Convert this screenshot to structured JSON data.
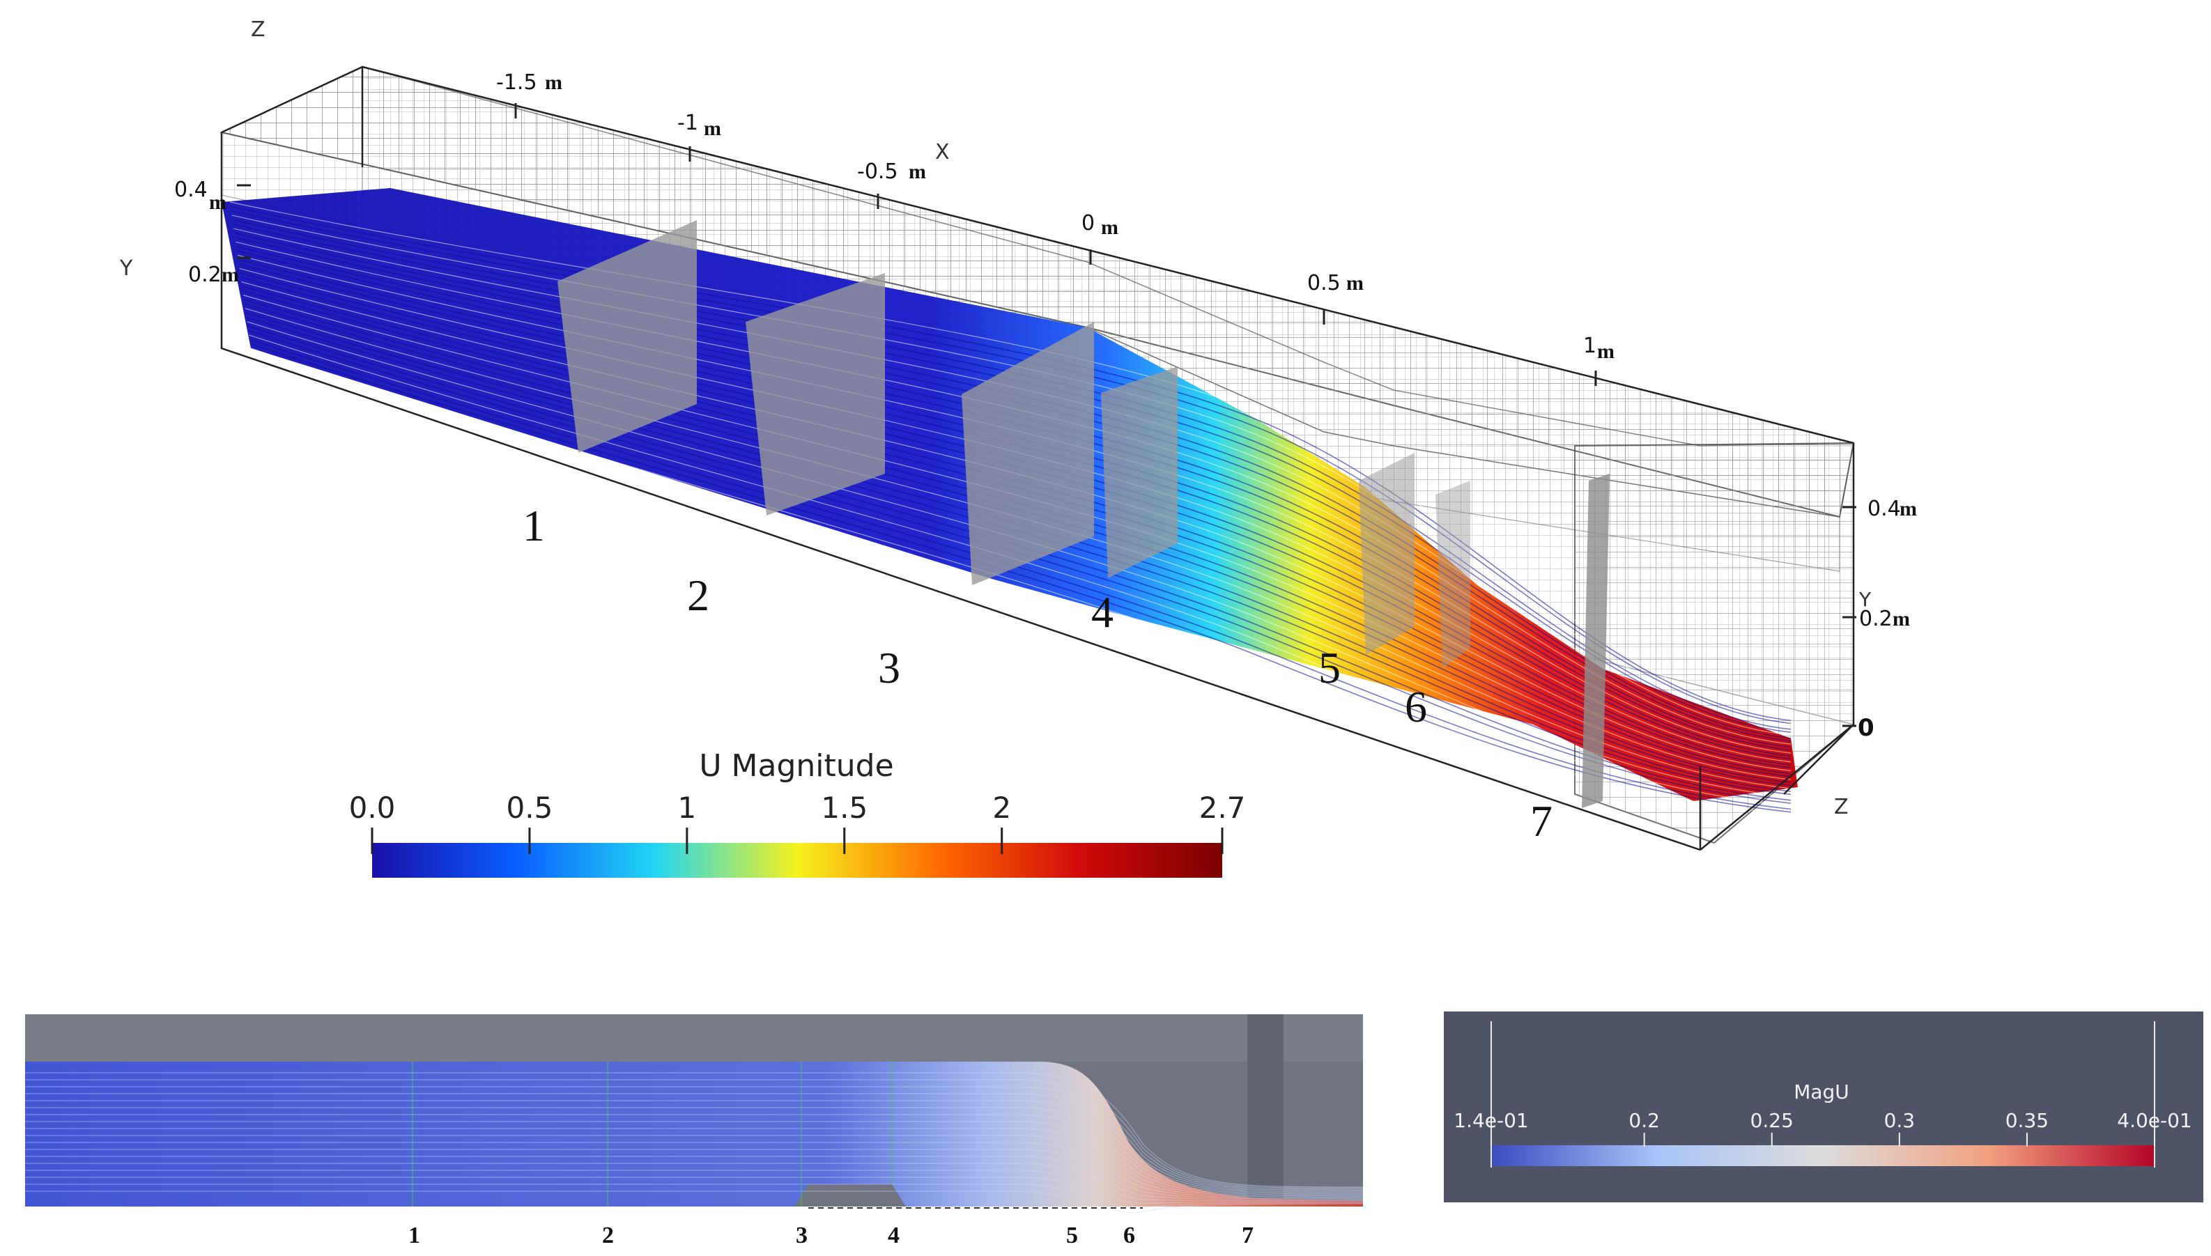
{
  "model3d": {
    "axes": {
      "z_top": "Z",
      "y_left": "Y",
      "x": "X",
      "y_right": "Y",
      "z_right": "Z"
    },
    "x_ticks": [
      {
        "value": "-1.5",
        "unit": "m"
      },
      {
        "value": "-1",
        "unit": "m"
      },
      {
        "value": "-0.5",
        "unit": "m"
      },
      {
        "value": "0",
        "unit": "m"
      },
      {
        "value": "0.5",
        "unit": "m"
      },
      {
        "value": "1",
        "unit": "m"
      }
    ],
    "y_left_ticks": [
      {
        "value": "0.4",
        "unit": "m"
      },
      {
        "value": "0.2",
        "unit": "m"
      }
    ],
    "y_right_ticks": [
      {
        "value": "0.4",
        "unit": "m"
      },
      {
        "value": "0.2",
        "unit": "m"
      },
      {
        "value": "0",
        "unit": ""
      }
    ],
    "sections": [
      "1",
      "2",
      "3",
      "4",
      "5",
      "6",
      "7"
    ]
  },
  "colorbar1": {
    "title": "U Magnitude",
    "ticks": [
      "0.0",
      "0.5",
      "1",
      "1.5",
      "2",
      "2.7"
    ],
    "colors": [
      "#1a0fa8",
      "#0a5cff",
      "#22d6f2",
      "#f6f21e",
      "#ff6a00",
      "#d10a0a",
      "#7a0000"
    ]
  },
  "side_view": {
    "sections": [
      "1",
      "2",
      "3",
      "4",
      "5",
      "6",
      "7"
    ]
  },
  "colorbar2": {
    "title": "MagU",
    "ticks": [
      "1.4e-01",
      "0.2",
      "0.25",
      "0.3",
      "0.35",
      "4.0e-01"
    ],
    "colors": [
      "#3b4cc0",
      "#a8c4f8",
      "#dddddd",
      "#f2a07f",
      "#b40426"
    ]
  }
}
